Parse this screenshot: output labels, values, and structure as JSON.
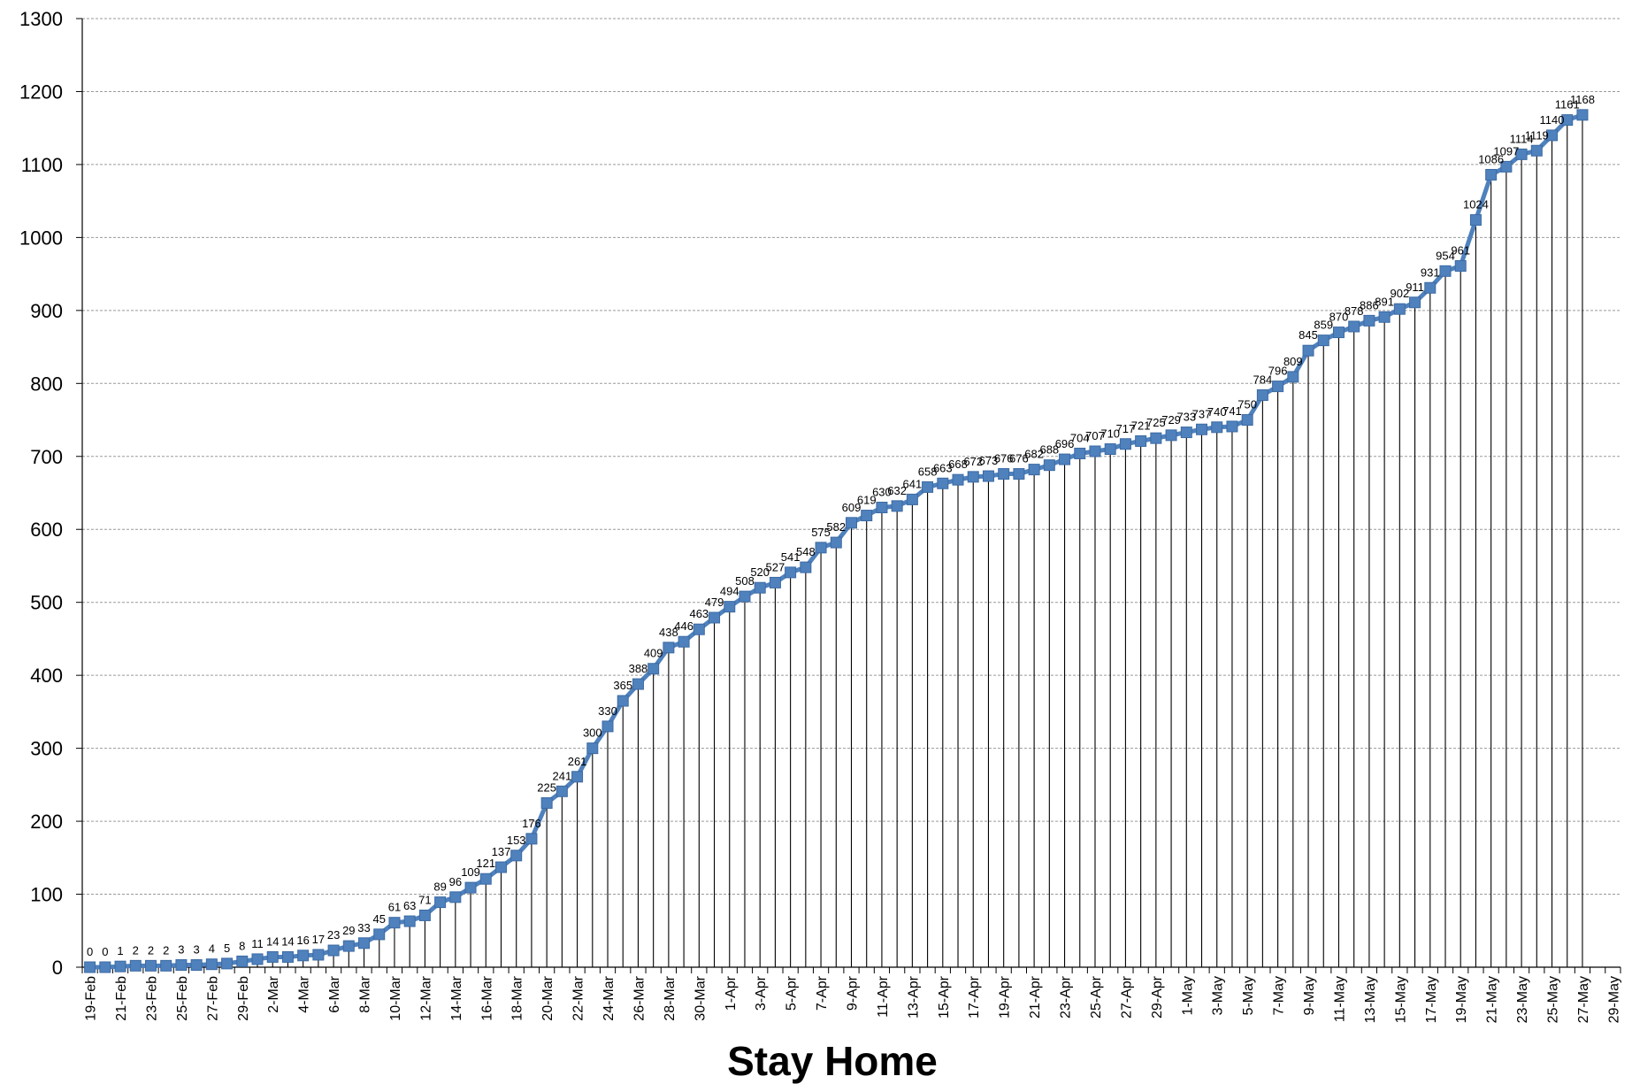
{
  "chart_data": {
    "type": "line",
    "title": "",
    "xlabel": "Stay Home",
    "ylabel": "",
    "ylim": [
      0,
      1300
    ],
    "ytick_step": 100,
    "grid": "horizontal dashed",
    "drop_lines": true,
    "marker": "square",
    "color": "#4F81BD",
    "x_label_interval": 2,
    "x": [
      "19-Feb",
      "20-Feb",
      "21-Feb",
      "22-Feb",
      "23-Feb",
      "24-Feb",
      "25-Feb",
      "26-Feb",
      "27-Feb",
      "28-Feb",
      "29-Feb",
      "1-Mar",
      "2-Mar",
      "3-Mar",
      "4-Mar",
      "5-Mar",
      "6-Mar",
      "7-Mar",
      "8-Mar",
      "9-Mar",
      "10-Mar",
      "11-Mar",
      "12-Mar",
      "13-Mar",
      "14-Mar",
      "15-Mar",
      "16-Mar",
      "17-Mar",
      "18-Mar",
      "19-Mar",
      "20-Mar",
      "21-Mar",
      "22-Mar",
      "23-Mar",
      "24-Mar",
      "25-Mar",
      "26-Mar",
      "27-Mar",
      "28-Mar",
      "29-Mar",
      "30-Mar",
      "31-Mar",
      "1-Apr",
      "2-Apr",
      "3-Apr",
      "4-Apr",
      "5-Apr",
      "6-Apr",
      "7-Apr",
      "8-Apr",
      "9-Apr",
      "10-Apr",
      "11-Apr",
      "12-Apr",
      "13-Apr",
      "14-Apr",
      "15-Apr",
      "16-Apr",
      "17-Apr",
      "18-Apr",
      "19-Apr",
      "20-Apr",
      "21-Apr",
      "22-Apr",
      "23-Apr",
      "24-Apr",
      "25-Apr",
      "26-Apr",
      "27-Apr",
      "28-Apr",
      "29-Apr",
      "30-Apr",
      "1-May",
      "2-May",
      "3-May",
      "4-May",
      "5-May",
      "6-May",
      "7-May",
      "8-May",
      "9-May",
      "10-May",
      "11-May",
      "12-May",
      "13-May",
      "14-May",
      "15-May",
      "16-May",
      "17-May",
      "18-May",
      "19-May",
      "20-May",
      "21-May",
      "22-May",
      "23-May",
      "24-May",
      "25-May",
      "26-May",
      "27-May",
      "28-May",
      "29-May"
    ],
    "series": [
      {
        "values": [
          0,
          0,
          1,
          2,
          2,
          2,
          3,
          3,
          4,
          5,
          8,
          11,
          14,
          14,
          16,
          17,
          23,
          29,
          33,
          45,
          61,
          63,
          71,
          89,
          96,
          109,
          121,
          137,
          153,
          176,
          225,
          241,
          261,
          300,
          330,
          365,
          388,
          409,
          438,
          446,
          463,
          479,
          494,
          508,
          520,
          527,
          541,
          548,
          575,
          582,
          609,
          619,
          630,
          632,
          641,
          658,
          663,
          668,
          672,
          673,
          676,
          676,
          682,
          688,
          696,
          704,
          707,
          710,
          717,
          721,
          725,
          729,
          733,
          737,
          740,
          741,
          750,
          784,
          796,
          809,
          845,
          859,
          870,
          878,
          886,
          891,
          902,
          911,
          931,
          954,
          961,
          1024,
          1086,
          1097,
          1114,
          1119,
          1140,
          1161,
          1168,
          null,
          null
        ]
      }
    ]
  }
}
